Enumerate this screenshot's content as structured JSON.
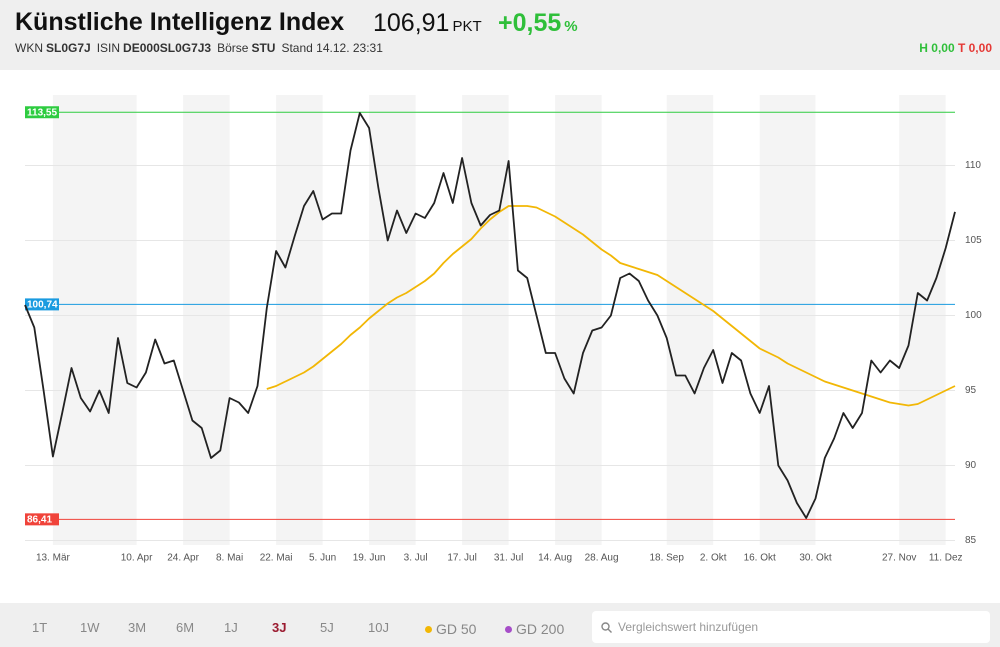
{
  "header": {
    "title": "Künstliche Intelligenz Index",
    "price": "106,91",
    "price_unit": "PKT",
    "change": "+0,55",
    "change_unit": "%",
    "info": [
      {
        "label": "WKN",
        "value": "SL0G7J"
      },
      {
        "label": "ISIN",
        "value": "DE000SL0G7J3"
      },
      {
        "label": "Börse",
        "value": "STU"
      }
    ],
    "stand": "Stand 14.12. 23:31",
    "high": "H 0,00",
    "low": "T 0,00"
  },
  "chart_data": {
    "type": "line",
    "categories": [
      null,
      null,
      null,
      "13. Mär",
      null,
      null,
      null,
      null,
      null,
      null,
      null,
      null,
      "10. Apr",
      null,
      null,
      null,
      null,
      "24. Apr",
      null,
      null,
      null,
      null,
      "8. Mai",
      null,
      null,
      null,
      null,
      "22. Mai",
      null,
      null,
      null,
      null,
      "5. Jun",
      null,
      null,
      null,
      null,
      "19. Jun",
      null,
      null,
      null,
      null,
      "3. Jul",
      null,
      null,
      null,
      null,
      "17. Jul",
      null,
      null,
      null,
      null,
      "31. Jul",
      null,
      null,
      null,
      null,
      "14. Aug",
      null,
      null,
      null,
      null,
      "28. Aug",
      null,
      null,
      null,
      null,
      null,
      null,
      "18. Sep",
      null,
      null,
      null,
      null,
      "2. Okt",
      null,
      null,
      null,
      null,
      "16. Okt",
      null,
      null,
      null,
      null,
      null,
      "30. Okt",
      null,
      null,
      null,
      null,
      null,
      null,
      null,
      null,
      "27. Nov",
      null,
      null,
      null,
      null,
      "11. Dez",
      null
    ],
    "series": [
      {
        "color": "#222222",
        "values": [
          100.7,
          99.2,
          95,
          90.6,
          93.5,
          96.5,
          94.5,
          93.6,
          95,
          93.5,
          98.5,
          95.5,
          95.2,
          96.2,
          98.4,
          96.8,
          97,
          95,
          93,
          92.5,
          90.5,
          91,
          94.5,
          94.2,
          93.5,
          95.3,
          100.5,
          104.3,
          103.2,
          105.3,
          107.3,
          108.3,
          106.4,
          106.8,
          106.8,
          111,
          113.5,
          112.5,
          108.5,
          105,
          107,
          105.5,
          106.8,
          106.5,
          107.5,
          109.5,
          107.5,
          110.5,
          107.5,
          106,
          106.7,
          107,
          110.3,
          103,
          102.5,
          100,
          97.5,
          97.5,
          95.8,
          94.8,
          97.5,
          99,
          99.2,
          100,
          102.5,
          102.8,
          102.3,
          101,
          100,
          98.5,
          96,
          96,
          94.8,
          96.5,
          97.7,
          95.5,
          97.5,
          97,
          94.8,
          93.5,
          95.3,
          90,
          89,
          87.5,
          86.5,
          87.8,
          90.5,
          91.8,
          93.5,
          92.5,
          93.5,
          97,
          96.2,
          97,
          96.5,
          98,
          101.5,
          101,
          102.5,
          104.5,
          106.91
        ]
      },
      {
        "name": "GD 50",
        "color": "#f2b705",
        "values": [
          null,
          null,
          null,
          null,
          null,
          null,
          null,
          null,
          null,
          null,
          null,
          null,
          null,
          null,
          null,
          null,
          null,
          null,
          null,
          null,
          null,
          null,
          null,
          null,
          null,
          null,
          95.1,
          95.3,
          95.6,
          95.9,
          96.2,
          96.6,
          97.1,
          97.6,
          98.1,
          98.7,
          99.2,
          99.8,
          100.3,
          100.8,
          101.2,
          101.5,
          101.9,
          102.3,
          102.8,
          103.5,
          104.1,
          104.6,
          105.1,
          105.8,
          106.4,
          106.9,
          107.3,
          107.3,
          107.3,
          107.2,
          106.9,
          106.6,
          106.2,
          105.8,
          105.4,
          104.9,
          104.4,
          104,
          103.5,
          103.3,
          103.1,
          102.9,
          102.7,
          102.3,
          101.9,
          101.5,
          101.1,
          100.7,
          100.3,
          99.8,
          99.3,
          98.8,
          98.3,
          97.8,
          97.5,
          97.2,
          96.8,
          96.5,
          96.2,
          95.9,
          95.6,
          95.4,
          95.2,
          95,
          94.8,
          94.6,
          94.4,
          94.2,
          94.1,
          94,
          94.1,
          94.4,
          94.7,
          95,
          95.3
        ]
      }
    ],
    "ylim": [
      84.7,
      114.7
    ],
    "yticks": [
      85,
      90,
      95,
      100,
      105,
      110
    ],
    "grid": true,
    "reference_lines": [
      {
        "value": 113.55,
        "label": "113,55",
        "color": "#2ecc40"
      },
      {
        "value": 100.74,
        "label": "100,74",
        "color": "#1a9be0"
      },
      {
        "value": 86.41,
        "label": "86,41",
        "color": "#f0433a"
      }
    ]
  },
  "footer": {
    "timeframes": [
      "1T",
      "1W",
      "3M",
      "6M",
      "1J",
      "3J",
      "5J",
      "10J"
    ],
    "active_timeframe": 5,
    "averages": [
      {
        "label": "GD 200",
        "color": "#a64dc8"
      }
    ],
    "search_placeholder": "Vergleichswert hinzufügen"
  }
}
